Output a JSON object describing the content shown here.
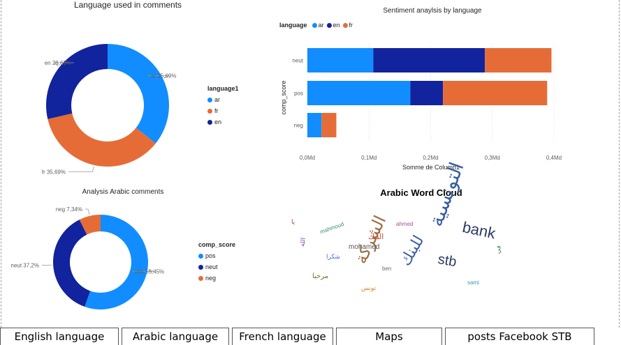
{
  "pie1": {
    "title": "Language used in comments",
    "legend_title": "language1",
    "slices": [
      {
        "key": "ar",
        "label": "ar 35,69%",
        "value": 35.69,
        "color": "#118DFF"
      },
      {
        "key": "fr",
        "label": "fr 35,69%",
        "value": 35.69,
        "color": "#E66C37"
      },
      {
        "key": "en",
        "label": "en 28,63%",
        "value": 28.63,
        "color": "#12239E"
      }
    ],
    "legend": [
      "ar",
      "fr",
      "en"
    ]
  },
  "pie2": {
    "title": "Analysis Arabic comments",
    "legend_title": "comp_score",
    "slices": [
      {
        "key": "pos",
        "label": "pos 55,45%",
        "value": 55.45,
        "color": "#118DFF"
      },
      {
        "key": "neut",
        "label": "neut 37,2%",
        "value": 37.2,
        "color": "#12239E"
      },
      {
        "key": "neg",
        "label": "neg 7,34%",
        "value": 7.34,
        "color": "#E66C37"
      }
    ],
    "legend": [
      "pos",
      "neut",
      "neg"
    ]
  },
  "chart_data": {
    "type": "bar",
    "title": "Sentiment anaylsis by language",
    "xlabel": "Somme de Column1",
    "ylabel": "comp_score",
    "legend_title": "language",
    "categories": [
      "neut",
      "pos",
      "neg"
    ],
    "series": [
      {
        "name": "ar",
        "color": "#118DFF",
        "values": [
          0.107,
          0.167,
          0.023
        ]
      },
      {
        "name": "en",
        "color": "#12239E",
        "values": [
          0.181,
          0.053,
          0.0
        ]
      },
      {
        "name": "fr",
        "color": "#E66C37",
        "values": [
          0.108,
          0.169,
          0.024
        ]
      }
    ],
    "xlim": [
      0,
      0.4
    ],
    "xticks": [
      "0,0Md",
      "0,1Md",
      "0,2Md",
      "0,3Md",
      "0,4Md"
    ],
    "grid": true,
    "legend_position": "top-left"
  },
  "wordcloud": {
    "title": "Arabic Word Cloud",
    "words": [
      {
        "text": "bank",
        "color": "#2b3a67"
      },
      {
        "text": "التونسية",
        "color": "#3a5fa0"
      },
      {
        "text": "الشركة",
        "color": "#9c6b3f"
      },
      {
        "text": "stb",
        "color": "#2b3a67"
      },
      {
        "text": "للبنك",
        "color": "#3a5fa0"
      },
      {
        "text": "mohamed",
        "color": "#555555"
      },
      {
        "text": "ben",
        "color": "#6a6a6a"
      },
      {
        "text": "mahmoud",
        "color": "#3c8d6a"
      },
      {
        "text": "ahmed",
        "color": "#b04a8a"
      },
      {
        "text": "مرحبا",
        "color": "#5a7d2a"
      },
      {
        "text": "البنك",
        "color": "#c24a3a"
      },
      {
        "text": "شكرا",
        "color": "#4a6fd0"
      },
      {
        "text": "الله",
        "color": "#7a4ab0"
      },
      {
        "text": "تونس",
        "color": "#d08a2a"
      },
      {
        "text": "sami",
        "color": "#3a9ab0"
      },
      {
        "text": "يا",
        "color": "#a03a5a"
      },
      {
        "text": "في",
        "color": "#2a8a4a"
      }
    ]
  },
  "nav": {
    "tabs": [
      "English language",
      "Arabic language",
      "French language",
      "Maps",
      "posts Facebook STB"
    ]
  }
}
